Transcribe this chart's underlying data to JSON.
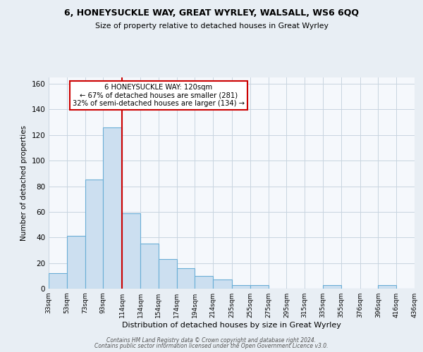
{
  "title": "6, HONEYSUCKLE WAY, GREAT WYRLEY, WALSALL, WS6 6QQ",
  "subtitle": "Size of property relative to detached houses in Great Wyrley",
  "xlabel": "Distribution of detached houses by size in Great Wyrley",
  "ylabel": "Number of detached properties",
  "bar_color": "#ccdff0",
  "bar_edge_color": "#6aaed6",
  "ref_line_color": "#cc0000",
  "annotation_lines": [
    "6 HONEYSUCKLE WAY: 120sqm",
    "← 67% of detached houses are smaller (281)",
    "32% of semi-detached houses are larger (134) →"
  ],
  "annotation_box_color": "white",
  "annotation_box_edge": "#cc0000",
  "bins": [
    33,
    53,
    73,
    93,
    114,
    134,
    154,
    174,
    194,
    214,
    235,
    255,
    275,
    295,
    315,
    335,
    355,
    376,
    396,
    416,
    436
  ],
  "bin_labels": [
    "33sqm",
    "53sqm",
    "73sqm",
    "93sqm",
    "114sqm",
    "134sqm",
    "154sqm",
    "174sqm",
    "194sqm",
    "214sqm",
    "235sqm",
    "255sqm",
    "275sqm",
    "295sqm",
    "315sqm",
    "335sqm",
    "355sqm",
    "376sqm",
    "396sqm",
    "416sqm",
    "436sqm"
  ],
  "counts": [
    12,
    41,
    85,
    126,
    59,
    35,
    23,
    16,
    10,
    7,
    3,
    3,
    0,
    0,
    0,
    3,
    0,
    0,
    3,
    0
  ],
  "ref_line_x": 114,
  "ylim": [
    0,
    165
  ],
  "yticks": [
    0,
    20,
    40,
    60,
    80,
    100,
    120,
    140,
    160
  ],
  "footer1": "Contains HM Land Registry data © Crown copyright and database right 2024.",
  "footer2": "Contains public sector information licensed under the Open Government Licence v3.0.",
  "background_color": "#e8eef4",
  "plot_bg_color": "#f5f8fc",
  "grid_color": "#c8d4e0"
}
